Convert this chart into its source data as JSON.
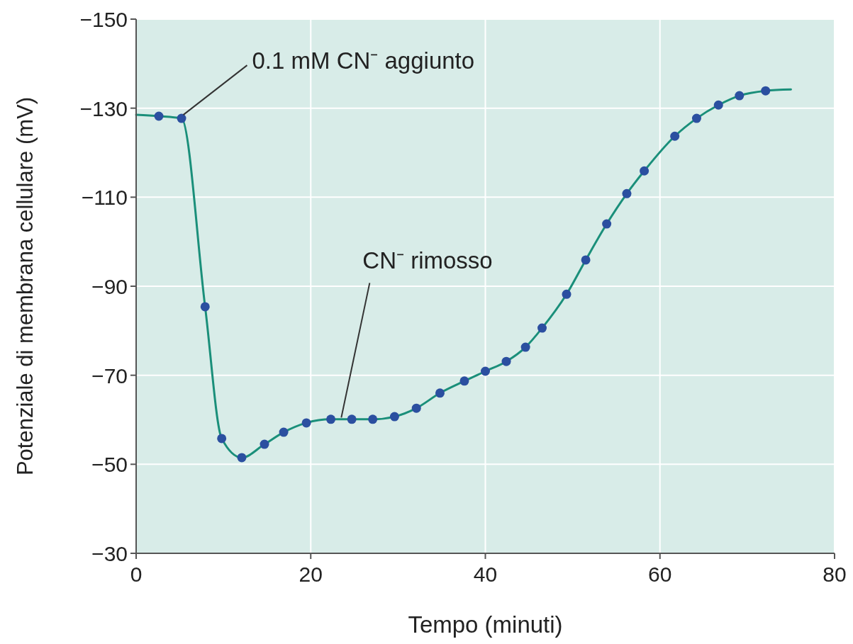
{
  "chart_data": {
    "type": "line",
    "xlabel": "Tempo (minuti)",
    "ylabel": "Potenziale di membrana cellulare (mV)",
    "xlim": [
      0,
      80
    ],
    "xticks": [
      0,
      20,
      40,
      60,
      80
    ],
    "ylim": [
      -30,
      -150
    ],
    "yticks": [
      {
        "value": -150,
        "label": "−150"
      },
      {
        "value": -130,
        "label": "−130"
      },
      {
        "value": -110,
        "label": "−110"
      },
      {
        "value": -90,
        "label": "−90"
      },
      {
        "value": -70,
        "label": "−70"
      },
      {
        "value": -50,
        "label": "−50"
      },
      {
        "value": -30,
        "label": "−30"
      }
    ],
    "grid": true,
    "series": [
      {
        "color": "#1a8f7a",
        "marker": "none",
        "x": [
          0,
          2.6,
          5.2,
          7.9,
          9.8,
          12.1,
          14.7,
          16.9,
          19.5,
          22.3,
          24.7,
          27.1,
          29.6,
          32.1,
          34.8,
          37.6,
          40.0,
          42.4,
          44.6,
          46.5,
          49.3,
          51.5,
          53.9,
          56.2,
          58.2,
          61.7,
          64.2,
          66.7,
          69.1,
          72.1,
          75
        ],
        "values": [
          -128.5,
          -128.2,
          -127.7,
          -85.4,
          -55.8,
          -51.5,
          -54.5,
          -57.2,
          -59.3,
          -60.1,
          -60.1,
          -60.1,
          -60.7,
          -62.6,
          -66.0,
          -68.7,
          -70.9,
          -73.1,
          -76.3,
          -80.6,
          -88.2,
          -95.9,
          -104.0,
          -110.8,
          -115.9,
          -123.7,
          -127.7,
          -130.7,
          -132.8,
          -133.9,
          -134.2
        ]
      },
      {
        "type": "scatter",
        "color": "#2b4fa0",
        "marker": "circle",
        "x": [
          2.6,
          5.2,
          7.9,
          9.8,
          12.1,
          14.7,
          16.9,
          19.5,
          22.3,
          24.7,
          27.1,
          29.6,
          32.1,
          34.8,
          37.6,
          40.0,
          42.4,
          44.6,
          46.5,
          49.3,
          51.5,
          53.9,
          56.2,
          58.2,
          61.7,
          64.2,
          66.7,
          69.1,
          72.1
        ],
        "values": [
          -128.2,
          -127.7,
          -85.4,
          -55.8,
          -51.5,
          -54.5,
          -57.2,
          -59.3,
          -60.1,
          -60.1,
          -60.1,
          -60.7,
          -62.6,
          -66.0,
          -68.7,
          -70.9,
          -73.1,
          -76.3,
          -80.6,
          -88.2,
          -95.9,
          -104.0,
          -110.8,
          -115.9,
          -123.7,
          -127.7,
          -130.7,
          -132.8,
          -133.9
        ]
      }
    ],
    "annotations": [
      {
        "text": "0.1 mM CN⁻ aggiunto",
        "x": 5.4,
        "y": -128.5
      },
      {
        "text": "CN⁻ rimosso",
        "x": 23.5,
        "y": -60.5
      }
    ]
  }
}
